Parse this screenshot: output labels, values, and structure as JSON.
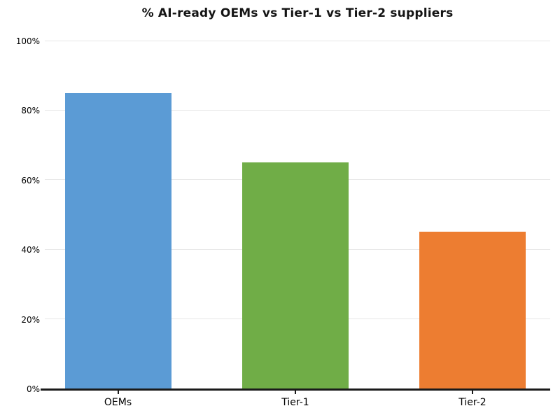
{
  "chart_data": {
    "type": "bar",
    "title": "% AI-ready OEMs vs Tier-1 vs Tier-2 suppliers",
    "categories": [
      "OEMs",
      "Tier-1",
      "Tier-2"
    ],
    "values": [
      85,
      65,
      45
    ],
    "bar_colors": [
      "#5b9bd5",
      "#70ad47",
      "#ed7d31"
    ],
    "xlabel": "",
    "ylabel": "",
    "ylim": [
      0,
      100
    ],
    "yticks": [
      0,
      20,
      40,
      60,
      80,
      100
    ],
    "ytick_labels": [
      "0%",
      "20%",
      "40%",
      "60%",
      "80%",
      "100%"
    ],
    "legend": "none",
    "grid": "horizontal"
  },
  "styles": {
    "background_color": "#ffffff",
    "grid_color": "#e7e7e7",
    "axis_color": "#1a1a1a",
    "text_color": "#000000"
  }
}
